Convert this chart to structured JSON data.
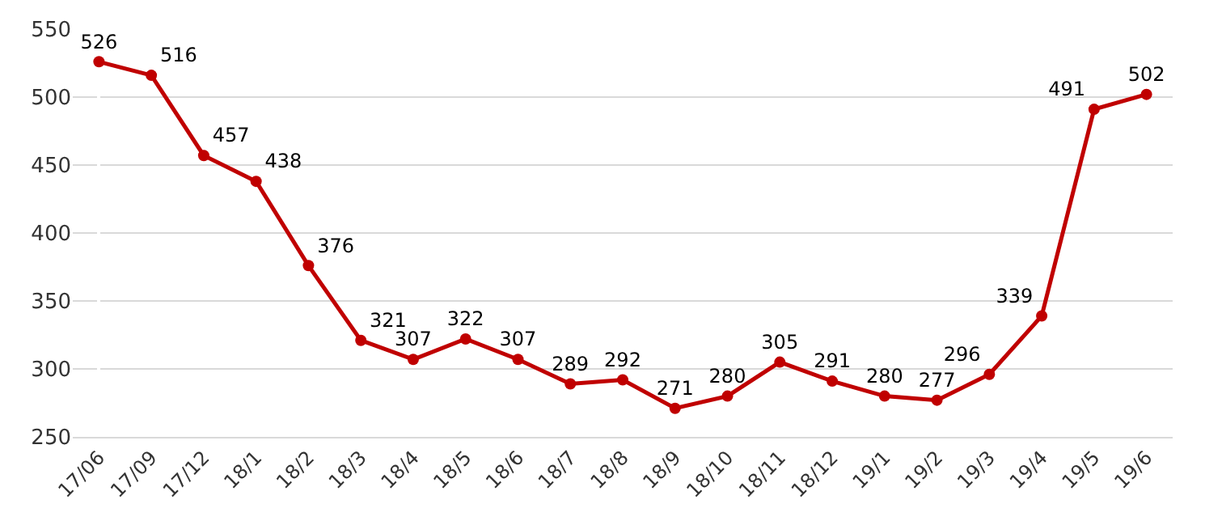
{
  "chart_data": {
    "type": "line",
    "categories": [
      "17/06",
      "17/09",
      "17/12",
      "18/1",
      "18/2",
      "18/3",
      "18/4",
      "18/5",
      "18/6",
      "18/7",
      "18/8",
      "18/9",
      "18/10",
      "18/11",
      "18/12",
      "19/1",
      "19/2",
      "19/3",
      "19/4",
      "19/5",
      "19/6"
    ],
    "series": [
      {
        "color": "#c00000",
        "values": [
          526,
          516,
          457,
          438,
          376,
          321,
          307,
          322,
          307,
          289,
          292,
          271,
          280,
          305,
          291,
          280,
          277,
          296,
          339,
          491,
          502
        ]
      }
    ],
    "ylim": [
      250,
      550
    ],
    "yticks": [
      250,
      300,
      350,
      400,
      450,
      500,
      550
    ],
    "grid": "y",
    "marker": "circle",
    "line_style": "solid",
    "data_labels": true,
    "legend": false
  }
}
